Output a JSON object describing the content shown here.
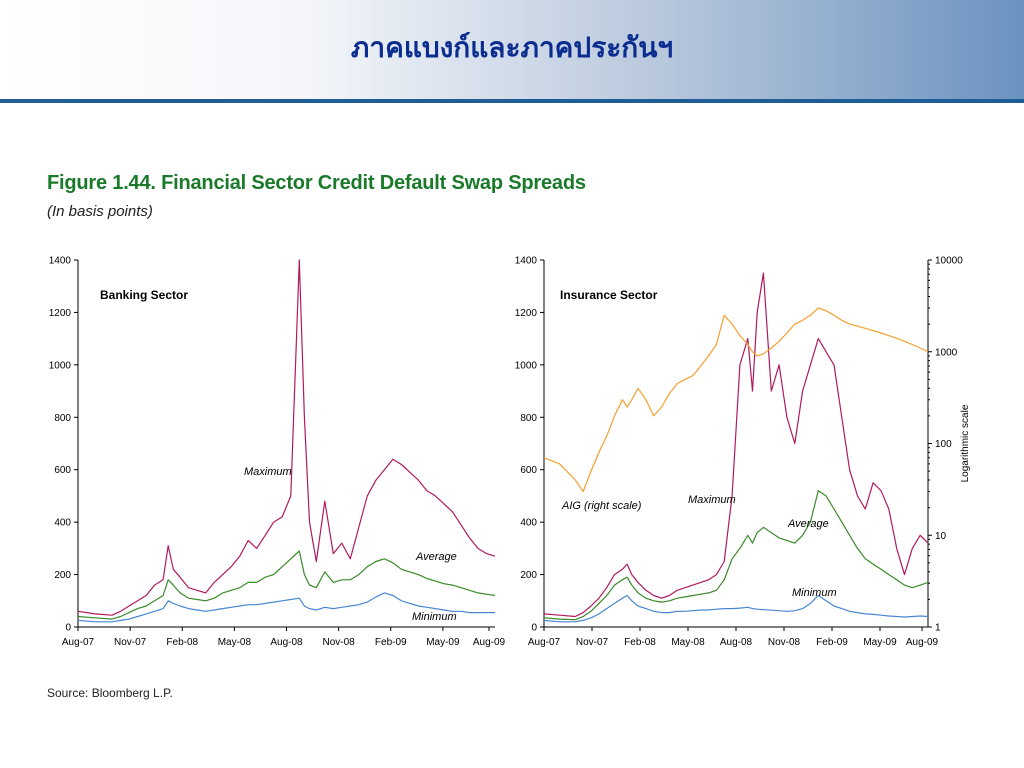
{
  "slide": {
    "title": "ภาคแบงก์และภาคประกันฯ"
  },
  "figure": {
    "title": "Figure 1.44. Financial Sector Credit Default Swap Spreads",
    "subtitle": "(In basis points)",
    "source": "Source: Bloomberg L.P."
  },
  "colors": {
    "maximum": "#b01a5e",
    "average": "#3a8a2a",
    "minimum": "#4a86d4",
    "aig": "#f5a030",
    "header_rule": "#1f5d96",
    "title_text": "#0b2d8f",
    "figure_title": "#1a7a2a"
  },
  "chart_data": [
    {
      "type": "line",
      "panel_label": "Banking Sector",
      "x_tick_labels": [
        "Aug-07",
        "Nov-07",
        "Feb-08",
        "May-08",
        "Aug-08",
        "Nov-08",
        "Feb-09",
        "May-09",
        "Aug-09"
      ],
      "y_ticks": [
        "0",
        "200",
        "400",
        "600",
        "800",
        "1000",
        "1200",
        "1400"
      ],
      "ylim": [
        0,
        1400
      ],
      "x": [
        0,
        1,
        2,
        2.5,
        3,
        3.5,
        4,
        4.5,
        5,
        5.3,
        5.6,
        6,
        6.5,
        7,
        7.5,
        8,
        8.5,
        9,
        9.5,
        10,
        10.5,
        11,
        11.5,
        12,
        12.5,
        13,
        13.3,
        13.6,
        14,
        14.5,
        15,
        15.5,
        16,
        16.5,
        17,
        17.5,
        18,
        18.5,
        19,
        19.5,
        20,
        20.5,
        21,
        21.5,
        22,
        22.5,
        23,
        23.5,
        24,
        24.5
      ],
      "series": [
        {
          "name": "Maximum",
          "label": "Maximum",
          "color_key": "maximum",
          "values": [
            60,
            50,
            45,
            60,
            80,
            100,
            120,
            160,
            180,
            310,
            220,
            190,
            150,
            140,
            130,
            170,
            200,
            230,
            270,
            330,
            300,
            350,
            400,
            420,
            500,
            1400,
            800,
            400,
            250,
            480,
            280,
            320,
            260,
            380,
            500,
            560,
            600,
            640,
            620,
            590,
            560,
            520,
            500,
            470,
            440,
            390,
            340,
            300,
            280,
            270
          ]
        },
        {
          "name": "Average",
          "label": "Average",
          "color_key": "average",
          "values": [
            40,
            35,
            30,
            40,
            55,
            70,
            80,
            100,
            120,
            180,
            160,
            130,
            110,
            105,
            100,
            110,
            130,
            140,
            150,
            170,
            170,
            190,
            200,
            230,
            260,
            290,
            200,
            160,
            150,
            210,
            170,
            180,
            180,
            200,
            230,
            250,
            260,
            245,
            220,
            210,
            200,
            185,
            175,
            165,
            160,
            150,
            140,
            130,
            125,
            120
          ]
        },
        {
          "name": "Minimum",
          "label": "Minimum",
          "color_key": "minimum",
          "values": [
            25,
            20,
            20,
            25,
            30,
            40,
            50,
            60,
            70,
            100,
            90,
            80,
            70,
            65,
            60,
            65,
            70,
            75,
            80,
            85,
            85,
            90,
            95,
            100,
            105,
            110,
            80,
            70,
            65,
            75,
            70,
            75,
            80,
            85,
            95,
            115,
            130,
            120,
            100,
            90,
            80,
            75,
            70,
            65,
            60,
            60,
            55,
            55,
            55,
            55
          ]
        }
      ]
    },
    {
      "type": "line",
      "panel_label": "Insurance Sector",
      "x_tick_labels": [
        "Aug-07",
        "Nov-07",
        "Feb-08",
        "May-08",
        "Aug-08",
        "Nov-08",
        "Feb-09",
        "May-09",
        "Aug-09"
      ],
      "y_ticks": [
        "0",
        "200",
        "400",
        "600",
        "800",
        "1000",
        "1200",
        "1400"
      ],
      "ylim": [
        0,
        1400
      ],
      "y2_ticks": [
        "1",
        "10",
        "100",
        "1000",
        "10000"
      ],
      "y2lim": [
        1,
        10000
      ],
      "y2_scale": "log",
      "y2_label": "Logarithmic scale",
      "x": [
        0,
        1,
        2,
        2.5,
        3,
        3.5,
        4,
        4.5,
        5,
        5.3,
        5.6,
        6,
        6.5,
        7,
        7.5,
        8,
        8.5,
        9,
        9.5,
        10,
        10.5,
        11,
        11.5,
        12,
        12.5,
        13,
        13.3,
        13.6,
        14,
        14.5,
        15,
        15.5,
        16,
        16.5,
        17,
        17.5,
        18,
        18.5,
        19,
        19.5,
        20,
        20.5,
        21,
        21.5,
        22,
        22.5,
        23,
        23.5,
        24,
        24.5
      ],
      "series": [
        {
          "name": "Maximum",
          "label": "Maximum",
          "color_key": "maximum",
          "axis": "left",
          "values": [
            50,
            45,
            40,
            55,
            80,
            110,
            150,
            200,
            220,
            240,
            200,
            170,
            140,
            120,
            110,
            120,
            140,
            150,
            160,
            170,
            180,
            200,
            250,
            500,
            1000,
            1100,
            900,
            1200,
            1350,
            900,
            1000,
            800,
            700,
            900,
            1000,
            1100,
            1050,
            1000,
            800,
            600,
            500,
            450,
            550,
            520,
            450,
            300,
            200,
            300,
            350,
            320
          ]
        },
        {
          "name": "Average",
          "label": "Average",
          "color_key": "average",
          "axis": "left",
          "values": [
            35,
            30,
            28,
            40,
            60,
            90,
            120,
            160,
            180,
            190,
            160,
            130,
            110,
            100,
            95,
            100,
            110,
            115,
            120,
            125,
            130,
            140,
            180,
            260,
            300,
            350,
            320,
            360,
            380,
            360,
            340,
            330,
            320,
            350,
            400,
            520,
            500,
            450,
            400,
            350,
            300,
            260,
            240,
            220,
            200,
            180,
            160,
            150,
            160,
            170
          ]
        },
        {
          "name": "Minimum",
          "label": "Minimum",
          "color_key": "minimum",
          "axis": "left",
          "values": [
            25,
            20,
            20,
            25,
            35,
            50,
            70,
            90,
            110,
            120,
            100,
            80,
            70,
            60,
            55,
            55,
            60,
            60,
            62,
            65,
            65,
            68,
            70,
            70,
            72,
            75,
            70,
            68,
            66,
            64,
            62,
            60,
            62,
            70,
            90,
            120,
            100,
            80,
            70,
            60,
            55,
            50,
            48,
            45,
            42,
            40,
            38,
            40,
            42,
            40
          ]
        },
        {
          "name": "AIG (right scale)",
          "label": "AIG (right scale)",
          "color_key": "aig",
          "axis": "right",
          "values": [
            70,
            60,
            40,
            30,
            50,
            80,
            120,
            200,
            300,
            250,
            300,
            400,
            300,
            200,
            250,
            350,
            450,
            500,
            550,
            700,
            900,
            1200,
            2500,
            2000,
            1500,
            1200,
            1000,
            900,
            950,
            1100,
            1300,
            1600,
            2000,
            2200,
            2500,
            3000,
            2800,
            2500,
            2200,
            2000,
            1900,
            1800,
            1700,
            1600,
            1500,
            1400,
            1300,
            1200,
            1100,
            1000
          ]
        }
      ]
    }
  ]
}
